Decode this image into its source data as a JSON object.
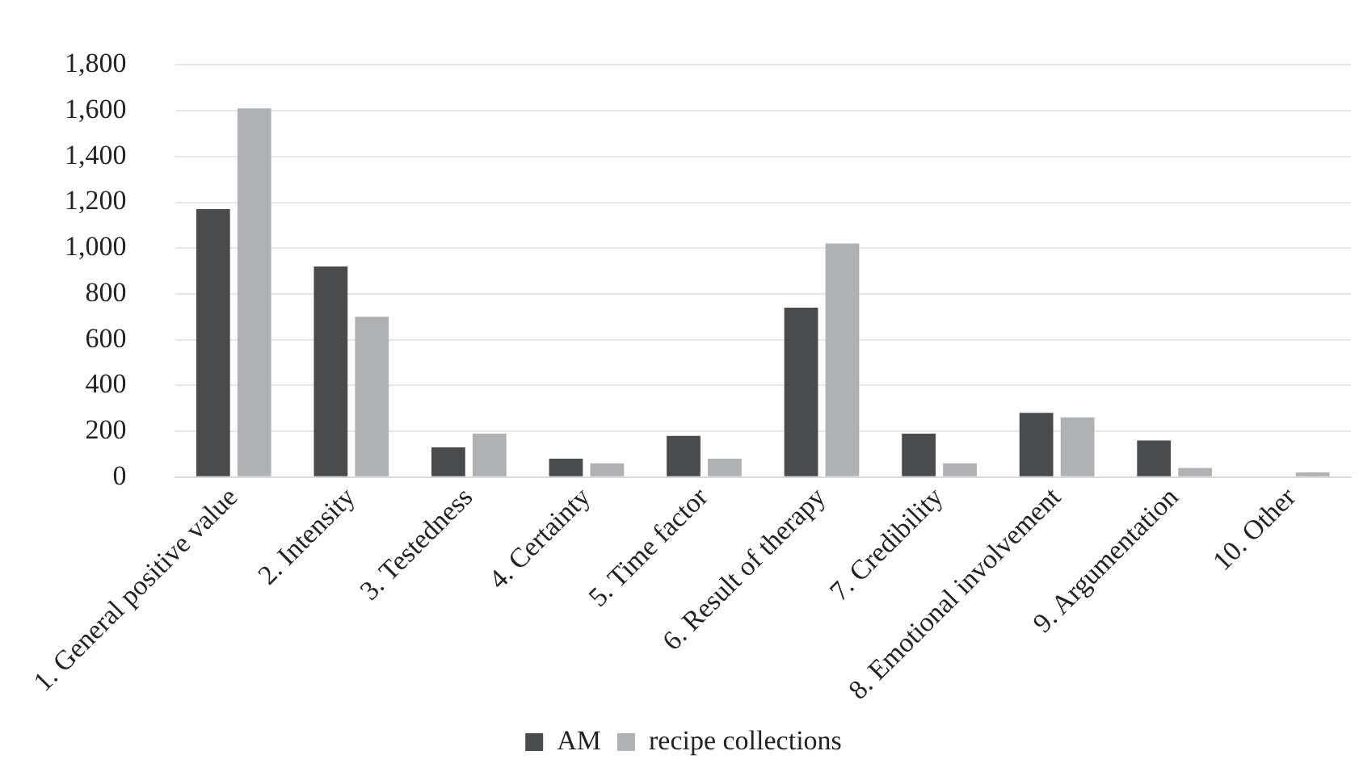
{
  "chart_data": {
    "type": "bar",
    "categories": [
      "1. General positive value",
      "2. Intensity",
      "3. Testedness",
      "4. Certainty",
      "5. Time factor",
      "6. Result of therapy",
      "7. Credibility",
      "8. Emotional involvement",
      "9. Argumentation",
      "10. Other"
    ],
    "series": [
      {
        "name": "AM",
        "color": "#4a4b4d",
        "values": [
          1170,
          920,
          130,
          80,
          180,
          740,
          190,
          280,
          160,
          0
        ]
      },
      {
        "name": "recipe collections",
        "color": "#b0b1b4",
        "values": [
          1610,
          700,
          190,
          60,
          80,
          1020,
          60,
          260,
          40,
          20
        ]
      }
    ],
    "ylim": [
      0,
      1800
    ],
    "yticks": [
      {
        "value": 0,
        "label": "0"
      },
      {
        "value": 200,
        "label": "200"
      },
      {
        "value": 400,
        "label": "400"
      },
      {
        "value": 600,
        "label": "600"
      },
      {
        "value": 800,
        "label": "800"
      },
      {
        "value": 1000,
        "label": "1,000"
      },
      {
        "value": 1200,
        "label": "1,200"
      },
      {
        "value": 1400,
        "label": "1,400"
      },
      {
        "value": 1600,
        "label": "1,600"
      },
      {
        "value": 1800,
        "label": "1,800"
      }
    ],
    "grid": "y",
    "legend": "bottom"
  }
}
